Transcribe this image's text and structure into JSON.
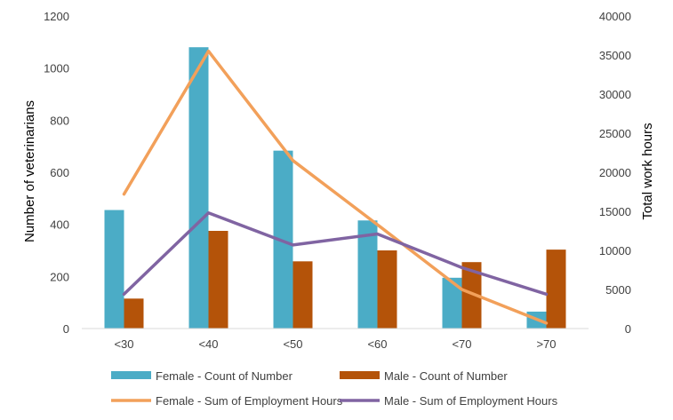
{
  "chart_data": {
    "type": "bar",
    "categories": [
      "<30",
      "<40",
      "<50",
      "<60",
      "<70",
      ">70"
    ],
    "series": [
      {
        "name": "Female - Count of Number",
        "type": "bar",
        "axis": "left",
        "color": "#4bacc6",
        "values": [
          455,
          1080,
          683,
          415,
          195,
          65
        ]
      },
      {
        "name": "Male - Count of Number",
        "type": "bar",
        "axis": "left",
        "color": "#b45309",
        "values": [
          115,
          375,
          258,
          300,
          255,
          303
        ]
      },
      {
        "name": "Female - Sum of Employment Hours",
        "type": "line",
        "axis": "right",
        "color": "#f2a05a",
        "values": [
          17200,
          35500,
          21500,
          13300,
          5000,
          700
        ]
      },
      {
        "name": "Male - Sum of Employment Hours",
        "type": "line",
        "axis": "right",
        "color": "#8064a2",
        "values": [
          4400,
          14800,
          10700,
          12100,
          7800,
          4400
        ]
      }
    ],
    "ylabel": "Number of veterinarians",
    "y2label": "Total work hours",
    "ylim": [
      0,
      1200
    ],
    "y2lim": [
      0,
      40000
    ],
    "yticks": [
      "0",
      "200",
      "400",
      "600",
      "800",
      "1000",
      "1200"
    ],
    "y2ticks": [
      "0",
      "5000",
      "10000",
      "15000",
      "20000",
      "25000",
      "30000",
      "35000",
      "40000"
    ],
    "grid": false,
    "legend": "bottom"
  }
}
